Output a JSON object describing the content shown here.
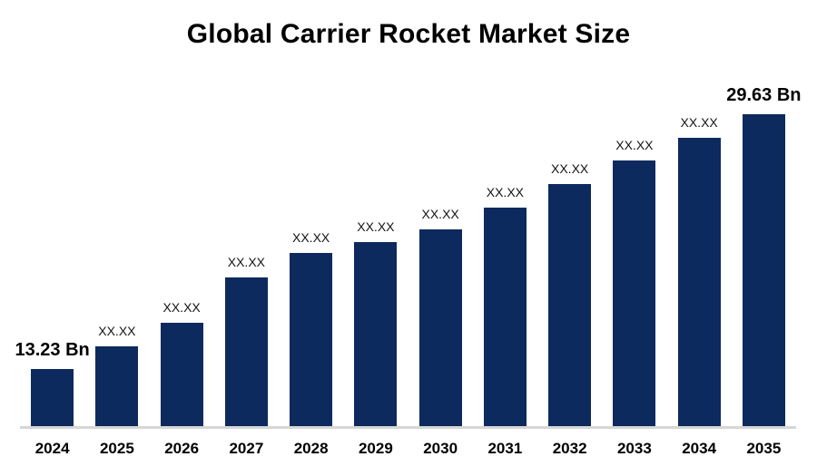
{
  "chart_data": {
    "type": "bar",
    "title": "Global Carrier Rocket Market Size",
    "categories": [
      "2024",
      "2025",
      "2026",
      "2027",
      "2028",
      "2029",
      "2030",
      "2031",
      "2032",
      "2033",
      "2034",
      "2035"
    ],
    "values": [
      13.23,
      14.69,
      16.23,
      19.14,
      20.71,
      21.44,
      22.25,
      23.65,
      25.16,
      26.67,
      28.12,
      29.63
    ],
    "bar_labels": [
      "13.23 Bn",
      "XX.XX",
      "XX.XX",
      "XX.XX",
      "XX.XX",
      "XX.XX",
      "XX.XX",
      "XX.XX",
      "XX.XX",
      "XX.XX",
      "XX.XX",
      "29.63 Bn"
    ],
    "xlabel": "",
    "ylabel": "",
    "ylim": [
      9.58,
      29.63
    ],
    "grid": false,
    "legend": false,
    "colors": {
      "bar": "#0c2a5e",
      "axis_line": "#d6d6d6",
      "text": "#000000",
      "background": "#ffffff"
    }
  }
}
